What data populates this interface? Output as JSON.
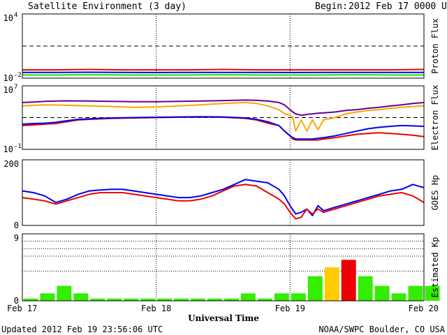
{
  "title": "Satellite Environment (3 day)",
  "begin_label": "Begin:",
  "begin_value": "2012 Feb 17 0000 UTC",
  "footer_left": "Updated 2012 Feb 19 23:56:06 UTC",
  "footer_right": "NOAA/SWPC Boulder, CO USA",
  "xaxis_label": "Universal Time",
  "colors": {
    "red": "#ee0000",
    "blue": "#0000ee",
    "green": "#00ee00",
    "orange": "#ffa500",
    "purple": "#660099",
    "kp_green": "#33ee00",
    "kp_yellow": "#ffcc00",
    "kp_red": "#ee0000"
  },
  "chart_data": [
    {
      "type": "line",
      "panel": "proton",
      "ylabel": "Proton Flux",
      "scale": "log",
      "ylim": [
        0.01,
        10000
      ],
      "ytick_labels": [
        {
          "base": "10",
          "exp": "4",
          "value": 10000
        },
        {
          "base": "10",
          "exp": "-2",
          "value": 0.01
        }
      ],
      "threshold": 10,
      "x": [
        0,
        6,
        12,
        18,
        24,
        30,
        36,
        42,
        48,
        54,
        60,
        66,
        72
      ],
      "series": [
        {
          "color_key": "red",
          "values": [
            0.06,
            0.06,
            0.065,
            0.06,
            0.06,
            0.06,
            0.065,
            0.06,
            0.06,
            0.06,
            0.06,
            0.06,
            0.065
          ]
        },
        {
          "color_key": "blue",
          "values": [
            0.035,
            0.035,
            0.036,
            0.035,
            0.034,
            0.035,
            0.035,
            0.035,
            0.034,
            0.035,
            0.035,
            0.035,
            0.035
          ]
        },
        {
          "color_key": "green",
          "values": [
            0.02,
            0.02,
            0.021,
            0.02,
            0.02,
            0.02,
            0.021,
            0.02,
            0.02,
            0.02,
            0.021,
            0.02,
            0.02
          ]
        }
      ]
    },
    {
      "type": "line",
      "panel": "electron",
      "ylabel": "Electron Flux",
      "scale": "log",
      "ylim": [
        0.1,
        10000000
      ],
      "ytick_labels": [
        {
          "base": "10",
          "exp": "7",
          "value": 10000000
        },
        {
          "base": "10",
          "exp": "-1",
          "value": 0.1
        }
      ],
      "threshold": 1000,
      "x": [
        0,
        2,
        4,
        6,
        8,
        10,
        12,
        16,
        20,
        24,
        28,
        32,
        36,
        40,
        42,
        44,
        46,
        47,
        48,
        48.5,
        49,
        50,
        51,
        52,
        53,
        54,
        56,
        58,
        60,
        62,
        64,
        66,
        68,
        70,
        72
      ],
      "series": [
        {
          "color_key": "purple",
          "values": [
            80000,
            90000,
            110000,
            120000,
            130000,
            125000,
            120000,
            110000,
            100000,
            100000,
            110000,
            120000,
            140000,
            160000,
            150000,
            120000,
            80000,
            40000,
            10000,
            5000,
            3000,
            2000,
            2500,
            3000,
            3500,
            4000,
            5000,
            8000,
            10000,
            15000,
            20000,
            30000,
            40000,
            60000,
            80000
          ]
        },
        {
          "color_key": "orange",
          "values": [
            30000,
            35000,
            40000,
            38000,
            35000,
            32000,
            30000,
            25000,
            20000,
            22000,
            30000,
            40000,
            60000,
            80000,
            60000,
            30000,
            10000,
            3000,
            2000,
            1000,
            20,
            500,
            20,
            500,
            30,
            500,
            1000,
            3000,
            5000,
            8000,
            10000,
            15000,
            20000,
            25000,
            30000
          ]
        },
        {
          "color_key": "red",
          "values": [
            100,
            120,
            150,
            180,
            300,
            500,
            600,
            800,
            900,
            1000,
            1100,
            1200,
            1100,
            800,
            500,
            200,
            100,
            20,
            5,
            2,
            1.5,
            1.5,
            1.5,
            1.5,
            1.5,
            2,
            3,
            5,
            8,
            10,
            12,
            10,
            8,
            6,
            4
          ]
        },
        {
          "color_key": "blue",
          "values": [
            150,
            180,
            200,
            250,
            400,
            600,
            700,
            900,
            1000,
            1100,
            1200,
            1300,
            1200,
            900,
            600,
            300,
            100,
            20,
            5,
            3,
            2,
            2,
            2,
            2,
            2.5,
            3,
            5,
            10,
            20,
            40,
            60,
            80,
            100,
            90,
            80
          ]
        }
      ]
    },
    {
      "type": "line",
      "panel": "goes_hp",
      "ylabel": "GOES Hp",
      "scale": "linear",
      "ylim": [
        0,
        200
      ],
      "ytick_labels": [
        {
          "base": "200",
          "exp": "",
          "value": 200
        },
        {
          "base": "0",
          "exp": "",
          "value": 0
        }
      ],
      "x": [
        0,
        2,
        4,
        6,
        8,
        10,
        12,
        14,
        16,
        18,
        20,
        22,
        24,
        26,
        28,
        30,
        32,
        34,
        36,
        38,
        40,
        42,
        44,
        46,
        47,
        48,
        49,
        50,
        51,
        52,
        53,
        54,
        56,
        58,
        60,
        62,
        64,
        66,
        68,
        70,
        72
      ],
      "series": [
        {
          "color_key": "blue",
          "values": [
            105,
            100,
            90,
            70,
            80,
            95,
            105,
            108,
            110,
            110,
            105,
            100,
            95,
            90,
            85,
            85,
            90,
            100,
            110,
            125,
            140,
            135,
            130,
            110,
            90,
            60,
            35,
            40,
            50,
            30,
            60,
            45,
            55,
            65,
            75,
            85,
            95,
            105,
            110,
            125,
            115
          ]
        },
        {
          "color_key": "red",
          "values": [
            85,
            80,
            75,
            65,
            75,
            85,
            95,
            100,
            100,
            100,
            95,
            90,
            85,
            80,
            75,
            75,
            80,
            90,
            105,
            120,
            125,
            120,
            100,
            80,
            65,
            40,
            20,
            25,
            50,
            35,
            50,
            40,
            50,
            60,
            70,
            80,
            90,
            95,
            100,
            90,
            70
          ]
        }
      ]
    },
    {
      "type": "bar",
      "panel": "kp",
      "ylabel": "Estimated Kp",
      "scale": "linear",
      "ylim": [
        0,
        9
      ],
      "ytick_labels": [
        {
          "base": "9",
          "exp": "",
          "value": 9
        },
        {
          "base": "0",
          "exp": "",
          "value": 0
        }
      ],
      "grid_levels": [
        4,
        6,
        7,
        8
      ],
      "bar_hours": 3,
      "values": [
        0.3,
        1,
        2,
        1,
        0.3,
        0.3,
        0.3,
        0.3,
        0.3,
        0.3,
        0.3,
        0.3,
        0.3,
        1,
        0.3,
        1,
        1,
        3.3,
        4.5,
        5.5,
        3.3,
        2,
        1,
        2,
        2
      ],
      "color_keys": [
        "kp_green",
        "kp_green",
        "kp_green",
        "kp_green",
        "kp_green",
        "kp_green",
        "kp_green",
        "kp_green",
        "kp_green",
        "kp_green",
        "kp_green",
        "kp_green",
        "kp_green",
        "kp_green",
        "kp_green",
        "kp_green",
        "kp_green",
        "kp_green",
        "kp_yellow",
        "kp_red",
        "kp_green",
        "kp_green",
        "kp_green",
        "kp_green",
        "kp_green"
      ]
    }
  ],
  "xaxis": {
    "range_hours": [
      0,
      72
    ],
    "ticks": [
      {
        "hour": 0,
        "label": "Feb 17"
      },
      {
        "hour": 24,
        "label": "Feb 18"
      },
      {
        "hour": 48,
        "label": "Feb 19"
      },
      {
        "hour": 72,
        "label": "Feb 20"
      }
    ]
  }
}
